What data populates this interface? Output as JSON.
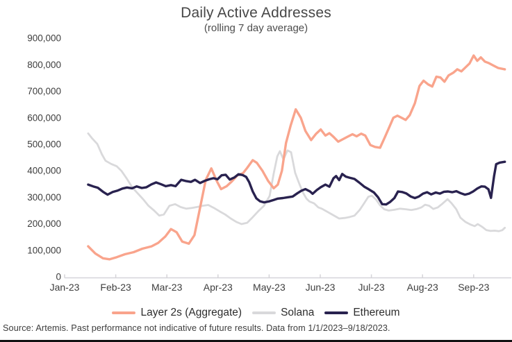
{
  "chart_data": {
    "type": "line",
    "title": "Daily Active Addresses",
    "subtitle": "(rolling 7 day average)",
    "xlabel": "",
    "ylabel": "",
    "x_unit": "months since 2023-01-01 (decimal)",
    "x_tick_labels": [
      "Jan-23",
      "Feb-23",
      "Mar-23",
      "Apr-23",
      "May-23",
      "Jun-23",
      "Jul-23",
      "Aug-23",
      "Sep-23"
    ],
    "y_tick_labels": [
      "0",
      "100,000",
      "200,000",
      "300,000",
      "400,000",
      "500,000",
      "600,000",
      "700,000",
      "800,000",
      "900,000"
    ],
    "ylim": [
      0,
      900000
    ],
    "grid": false,
    "legend_position": "bottom",
    "colors": {
      "axis": "#d5d4d9",
      "tick_text": "#3d3d3d"
    },
    "series": [
      {
        "name": "Layer 2s (Aggregate)",
        "color": "#f9a48c",
        "width": 3.4,
        "z": 1,
        "points": [
          [
            0.46,
            115000
          ],
          [
            0.6,
            88000
          ],
          [
            0.75,
            70000
          ],
          [
            0.88,
            66000
          ],
          [
            1.02,
            74000
          ],
          [
            1.18,
            85000
          ],
          [
            1.35,
            93000
          ],
          [
            1.52,
            106000
          ],
          [
            1.7,
            115000
          ],
          [
            1.83,
            128000
          ],
          [
            1.97,
            152000
          ],
          [
            2.08,
            180000
          ],
          [
            2.19,
            168000
          ],
          [
            2.3,
            133000
          ],
          [
            2.43,
            125000
          ],
          [
            2.54,
            157000
          ],
          [
            2.68,
            289000
          ],
          [
            2.76,
            365000
          ],
          [
            2.87,
            409000
          ],
          [
            2.98,
            360000
          ],
          [
            3.06,
            331000
          ],
          [
            3.17,
            342000
          ],
          [
            3.27,
            360000
          ],
          [
            3.38,
            383000
          ],
          [
            3.49,
            391000
          ],
          [
            3.57,
            411000
          ],
          [
            3.68,
            440000
          ],
          [
            3.76,
            430000
          ],
          [
            3.87,
            400000
          ],
          [
            3.98,
            362000
          ],
          [
            4.09,
            334000
          ],
          [
            4.17,
            348000
          ],
          [
            4.25,
            400000
          ],
          [
            4.33,
            505000
          ],
          [
            4.42,
            570000
          ],
          [
            4.52,
            632000
          ],
          [
            4.62,
            600000
          ],
          [
            4.71,
            550000
          ],
          [
            4.82,
            516000
          ],
          [
            4.92,
            540000
          ],
          [
            5.01,
            556000
          ],
          [
            5.1,
            533000
          ],
          [
            5.18,
            542000
          ],
          [
            5.26,
            528000
          ],
          [
            5.35,
            510000
          ],
          [
            5.45,
            520000
          ],
          [
            5.53,
            528000
          ],
          [
            5.63,
            538000
          ],
          [
            5.71,
            530000
          ],
          [
            5.8,
            540000
          ],
          [
            5.88,
            533000
          ],
          [
            5.98,
            497000
          ],
          [
            6.07,
            490000
          ],
          [
            6.17,
            487000
          ],
          [
            6.26,
            525000
          ],
          [
            6.35,
            565000
          ],
          [
            6.43,
            600000
          ],
          [
            6.51,
            608000
          ],
          [
            6.59,
            600000
          ],
          [
            6.67,
            592000
          ],
          [
            6.75,
            610000
          ],
          [
            6.85,
            655000
          ],
          [
            6.94,
            720000
          ],
          [
            7.02,
            740000
          ],
          [
            7.11,
            726000
          ],
          [
            7.19,
            718000
          ],
          [
            7.27,
            755000
          ],
          [
            7.35,
            752000
          ],
          [
            7.43,
            736000
          ],
          [
            7.51,
            760000
          ],
          [
            7.6,
            770000
          ],
          [
            7.68,
            783000
          ],
          [
            7.76,
            775000
          ],
          [
            7.84,
            790000
          ],
          [
            7.92,
            805000
          ],
          [
            8.0,
            835000
          ],
          [
            8.07,
            815000
          ],
          [
            8.14,
            828000
          ],
          [
            8.22,
            812000
          ],
          [
            8.3,
            806000
          ],
          [
            8.38,
            798000
          ],
          [
            8.48,
            788000
          ],
          [
            8.61,
            783000
          ]
        ]
      },
      {
        "name": "Solana",
        "color": "#d9d9db",
        "width": 2.8,
        "z": 0,
        "points": [
          [
            0.46,
            541000
          ],
          [
            0.54,
            522000
          ],
          [
            0.64,
            501000
          ],
          [
            0.73,
            462000
          ],
          [
            0.8,
            438000
          ],
          [
            0.91,
            426000
          ],
          [
            1.02,
            417000
          ],
          [
            1.11,
            400000
          ],
          [
            1.21,
            372000
          ],
          [
            1.32,
            338000
          ],
          [
            1.43,
            315000
          ],
          [
            1.54,
            292000
          ],
          [
            1.64,
            268000
          ],
          [
            1.75,
            250000
          ],
          [
            1.85,
            231000
          ],
          [
            1.94,
            235000
          ],
          [
            2.05,
            268000
          ],
          [
            2.16,
            274000
          ],
          [
            2.27,
            263000
          ],
          [
            2.38,
            257000
          ],
          [
            2.49,
            260000
          ],
          [
            2.6,
            264000
          ],
          [
            2.7,
            268000
          ],
          [
            2.81,
            271000
          ],
          [
            2.92,
            260000
          ],
          [
            3.03,
            247000
          ],
          [
            3.14,
            235000
          ],
          [
            3.25,
            220000
          ],
          [
            3.36,
            207000
          ],
          [
            3.46,
            199000
          ],
          [
            3.57,
            204000
          ],
          [
            3.68,
            225000
          ],
          [
            3.79,
            248000
          ],
          [
            3.9,
            268000
          ],
          [
            4.01,
            305000
          ],
          [
            4.09,
            390000
          ],
          [
            4.16,
            455000
          ],
          [
            4.21,
            474000
          ],
          [
            4.28,
            443000
          ],
          [
            4.36,
            477000
          ],
          [
            4.43,
            470000
          ],
          [
            4.51,
            392000
          ],
          [
            4.58,
            356000
          ],
          [
            4.66,
            318000
          ],
          [
            4.73,
            295000
          ],
          [
            4.79,
            284000
          ],
          [
            4.88,
            277000
          ],
          [
            4.96,
            262000
          ],
          [
            5.03,
            257000
          ],
          [
            5.26,
            232000
          ],
          [
            5.37,
            220000
          ],
          [
            5.48,
            222000
          ],
          [
            5.58,
            226000
          ],
          [
            5.67,
            231000
          ],
          [
            5.77,
            252000
          ],
          [
            5.85,
            275000
          ],
          [
            5.94,
            302000
          ],
          [
            6.01,
            306000
          ],
          [
            6.09,
            292000
          ],
          [
            6.17,
            270000
          ],
          [
            6.25,
            255000
          ],
          [
            6.34,
            250000
          ],
          [
            6.45,
            253000
          ],
          [
            6.56,
            257000
          ],
          [
            6.67,
            255000
          ],
          [
            6.78,
            252000
          ],
          [
            6.89,
            256000
          ],
          [
            6.98,
            262000
          ],
          [
            7.05,
            272000
          ],
          [
            7.13,
            268000
          ],
          [
            7.21,
            256000
          ],
          [
            7.3,
            262000
          ],
          [
            7.39,
            276000
          ],
          [
            7.49,
            293000
          ],
          [
            7.57,
            277000
          ],
          [
            7.66,
            255000
          ],
          [
            7.74,
            223000
          ],
          [
            7.84,
            207000
          ],
          [
            7.93,
            198000
          ],
          [
            8.02,
            191000
          ],
          [
            8.08,
            199000
          ],
          [
            8.17,
            188000
          ],
          [
            8.25,
            176000
          ],
          [
            8.33,
            173000
          ],
          [
            8.41,
            174000
          ],
          [
            8.49,
            172000
          ],
          [
            8.56,
            176000
          ],
          [
            8.61,
            185000
          ]
        ]
      },
      {
        "name": "Ethereum",
        "color": "#29224f",
        "width": 3.4,
        "z": 2,
        "points": [
          [
            0.46,
            348000
          ],
          [
            0.56,
            341000
          ],
          [
            0.65,
            336000
          ],
          [
            0.75,
            321000
          ],
          [
            0.84,
            310000
          ],
          [
            0.94,
            320000
          ],
          [
            1.03,
            325000
          ],
          [
            1.13,
            333000
          ],
          [
            1.22,
            337000
          ],
          [
            1.32,
            334000
          ],
          [
            1.41,
            341000
          ],
          [
            1.51,
            335000
          ],
          [
            1.6,
            338000
          ],
          [
            1.7,
            349000
          ],
          [
            1.79,
            356000
          ],
          [
            1.89,
            349000
          ],
          [
            1.98,
            342000
          ],
          [
            2.08,
            346000
          ],
          [
            2.17,
            342000
          ],
          [
            2.28,
            366000
          ],
          [
            2.38,
            361000
          ],
          [
            2.47,
            358000
          ],
          [
            2.55,
            366000
          ],
          [
            2.65,
            354000
          ],
          [
            2.74,
            362000
          ],
          [
            2.83,
            368000
          ],
          [
            2.91,
            372000
          ],
          [
            2.99,
            368000
          ],
          [
            3.07,
            383000
          ],
          [
            3.15,
            385000
          ],
          [
            3.23,
            367000
          ],
          [
            3.32,
            375000
          ],
          [
            3.4,
            387000
          ],
          [
            3.48,
            384000
          ],
          [
            3.55,
            377000
          ],
          [
            3.61,
            357000
          ],
          [
            3.68,
            322000
          ],
          [
            3.75,
            296000
          ],
          [
            3.82,
            285000
          ],
          [
            3.9,
            281000
          ],
          [
            3.99,
            284000
          ],
          [
            4.09,
            290000
          ],
          [
            4.17,
            295000
          ],
          [
            4.27,
            297000
          ],
          [
            4.36,
            300000
          ],
          [
            4.46,
            303000
          ],
          [
            4.55,
            315000
          ],
          [
            4.63,
            325000
          ],
          [
            4.71,
            331000
          ],
          [
            4.8,
            322000
          ],
          [
            4.85,
            313000
          ],
          [
            4.93,
            327000
          ],
          [
            5.01,
            338000
          ],
          [
            5.1,
            348000
          ],
          [
            5.18,
            340000
          ],
          [
            5.26,
            372000
          ],
          [
            5.31,
            380000
          ],
          [
            5.37,
            365000
          ],
          [
            5.43,
            388000
          ],
          [
            5.5,
            378000
          ],
          [
            5.57,
            374000
          ],
          [
            5.67,
            369000
          ],
          [
            5.76,
            356000
          ],
          [
            5.86,
            340000
          ],
          [
            5.95,
            330000
          ],
          [
            6.05,
            318000
          ],
          [
            6.13,
            300000
          ],
          [
            6.21,
            274000
          ],
          [
            6.29,
            273000
          ],
          [
            6.37,
            283000
          ],
          [
            6.45,
            297000
          ],
          [
            6.52,
            322000
          ],
          [
            6.6,
            320000
          ],
          [
            6.68,
            315000
          ],
          [
            6.77,
            303000
          ],
          [
            6.85,
            297000
          ],
          [
            6.93,
            303000
          ],
          [
            7.01,
            314000
          ],
          [
            7.09,
            319000
          ],
          [
            7.17,
            311000
          ],
          [
            7.26,
            318000
          ],
          [
            7.34,
            314000
          ],
          [
            7.42,
            321000
          ],
          [
            7.5,
            322000
          ],
          [
            7.58,
            319000
          ],
          [
            7.66,
            323000
          ],
          [
            7.74,
            316000
          ],
          [
            7.83,
            310000
          ],
          [
            7.91,
            314000
          ],
          [
            7.99,
            322000
          ],
          [
            8.07,
            333000
          ],
          [
            8.15,
            341000
          ],
          [
            8.22,
            340000
          ],
          [
            8.29,
            330000
          ],
          [
            8.34,
            298000
          ],
          [
            8.4,
            380000
          ],
          [
            8.44,
            425000
          ],
          [
            8.51,
            431000
          ],
          [
            8.61,
            434000
          ]
        ]
      }
    ]
  },
  "source_note": "Source: Artemis. Past performance not indicative of future results. Data from 1/1/2023–9/18/2023."
}
